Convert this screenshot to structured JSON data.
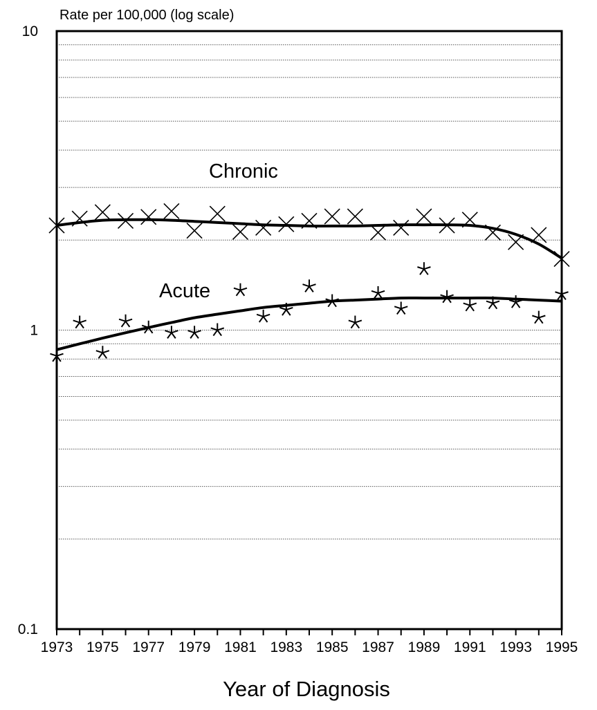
{
  "chart_data": {
    "type": "scatter",
    "title": "",
    "ylabel": "Rate per 100,000 (log scale)",
    "xlabel": "Year of Diagnosis",
    "yscale": "log",
    "ylim": [
      0.1,
      10
    ],
    "xlim": [
      1973,
      1995
    ],
    "y_tick_labels": [
      "10",
      "1",
      "0.1"
    ],
    "x_tick_labels": [
      "1973",
      "1975",
      "1977",
      "1979",
      "1981",
      "1983",
      "1985",
      "1987",
      "1989",
      "1991",
      "1993",
      "1995"
    ],
    "grid": "horizontal dotted",
    "legend": "none",
    "x": [
      1973,
      1974,
      1975,
      1976,
      1977,
      1978,
      1979,
      1980,
      1981,
      1982,
      1983,
      1984,
      1985,
      1986,
      1987,
      1988,
      1989,
      1990,
      1991,
      1992,
      1993,
      1994,
      1995
    ],
    "series": [
      {
        "name": "Chronic",
        "marker": "x",
        "values": [
          2.24,
          2.36,
          2.48,
          2.32,
          2.39,
          2.5,
          2.15,
          2.45,
          2.13,
          2.2,
          2.26,
          2.32,
          2.4,
          2.4,
          2.12,
          2.2,
          2.4,
          2.24,
          2.34,
          2.12,
          1.97,
          2.08,
          1.73
        ],
        "trend": [
          2.24,
          2.29,
          2.33,
          2.34,
          2.34,
          2.33,
          2.31,
          2.29,
          2.27,
          2.25,
          2.24,
          2.23,
          2.23,
          2.23,
          2.24,
          2.25,
          2.25,
          2.25,
          2.24,
          2.19,
          2.09,
          1.94,
          1.74
        ]
      },
      {
        "name": "Acute",
        "marker": "asterisk",
        "values": [
          0.82,
          1.06,
          0.84,
          1.07,
          1.02,
          0.98,
          0.98,
          1.0,
          1.36,
          1.11,
          1.17,
          1.4,
          1.25,
          1.06,
          1.33,
          1.18,
          1.6,
          1.29,
          1.21,
          1.23,
          1.24,
          1.1,
          1.32
        ],
        "trend": [
          0.86,
          0.9,
          0.94,
          0.98,
          1.02,
          1.06,
          1.1,
          1.13,
          1.16,
          1.19,
          1.21,
          1.23,
          1.25,
          1.26,
          1.27,
          1.28,
          1.28,
          1.28,
          1.28,
          1.28,
          1.27,
          1.26,
          1.25
        ]
      }
    ]
  }
}
